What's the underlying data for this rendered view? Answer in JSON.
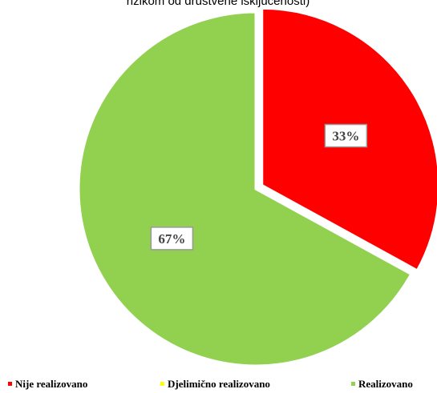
{
  "chart_data": {
    "type": "pie",
    "title": "rizikom od društvene isključenosti)",
    "categories": [
      "Nije realizovano",
      "Djelimično realizovano",
      "Realizovano"
    ],
    "values": [
      33,
      0,
      67
    ],
    "value_labels": [
      "33%",
      null,
      "67%"
    ],
    "colors": [
      "#ff0000",
      "#ffff00",
      "#92d050"
    ],
    "legend": "bottom"
  }
}
